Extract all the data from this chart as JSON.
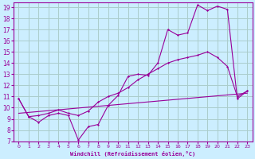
{
  "xlabel": "Windchill (Refroidissement éolien,°C)",
  "background_color": "#cceeff",
  "grid_color": "#aacccc",
  "line_color": "#990099",
  "xlim": [
    -0.5,
    23.5
  ],
  "ylim": [
    7,
    19.4
  ],
  "yticks": [
    7,
    8,
    9,
    10,
    11,
    12,
    13,
    14,
    15,
    16,
    17,
    18,
    19
  ],
  "xticks": [
    0,
    1,
    2,
    3,
    4,
    5,
    6,
    7,
    8,
    9,
    10,
    11,
    12,
    13,
    14,
    15,
    16,
    17,
    18,
    19,
    20,
    21,
    22,
    23
  ],
  "line1_x": [
    0,
    1,
    2,
    3,
    4,
    5,
    6,
    7,
    8,
    9,
    10,
    11,
    12,
    13,
    14,
    15,
    16,
    17,
    18,
    19,
    20,
    21,
    22,
    23
  ],
  "line1_y": [
    10.8,
    9.2,
    8.7,
    9.3,
    9.5,
    9.3,
    7.1,
    8.3,
    8.5,
    10.2,
    11.1,
    12.8,
    13.0,
    12.9,
    14.0,
    17.0,
    16.5,
    16.7,
    19.2,
    18.7,
    19.1,
    18.8,
    10.8,
    11.5
  ],
  "line2_x": [
    0,
    1,
    2,
    3,
    4,
    5,
    6,
    7,
    8,
    9,
    10,
    11,
    12,
    13,
    14,
    15,
    16,
    17,
    18,
    19,
    20,
    21,
    22,
    23
  ],
  "line2_y": [
    10.8,
    9.2,
    9.3,
    9.5,
    9.8,
    9.5,
    9.3,
    9.7,
    10.5,
    11.0,
    11.3,
    11.8,
    12.5,
    13.0,
    13.5,
    14.0,
    14.3,
    14.5,
    14.7,
    15.0,
    14.5,
    13.7,
    11.0,
    11.5
  ],
  "line3_x": [
    0,
    23
  ],
  "line3_y": [
    9.5,
    11.3
  ]
}
